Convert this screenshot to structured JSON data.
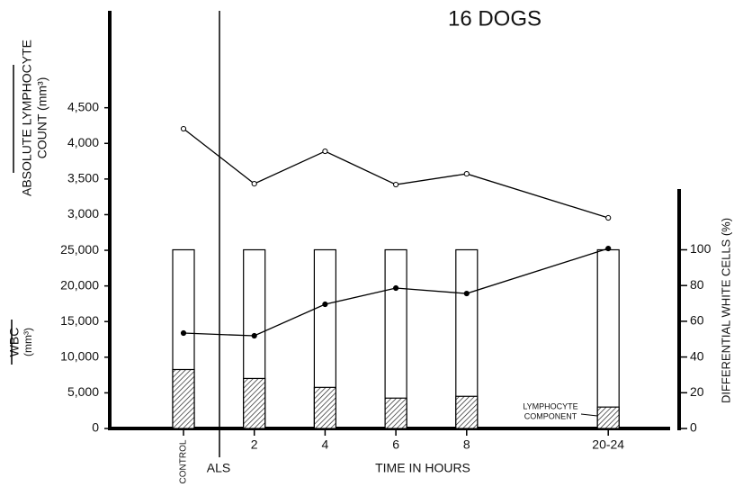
{
  "chart_data": {
    "type": "bar",
    "title": "16 DOGS",
    "x_label": "TIME IN HOURS",
    "annotation": "ALS",
    "component_label": [
      "LYMPHOCYTE",
      "COMPONENT"
    ],
    "lymph_axis_label": [
      "ABSOLUTE LYMPHOCYTE",
      "COUNT   (mm³)"
    ],
    "wbc_axis_label": [
      "WBC",
      "(mm³)"
    ],
    "y2_label": "DIFFERENTIAL WHITE CELLS (%)",
    "categories": [
      "CONTROL",
      "2",
      "4",
      "6",
      "8",
      "20-24"
    ],
    "ylim": [
      0,
      58600
    ],
    "yticks": [
      0,
      {
        "value": 5000,
        "label": "5,000"
      },
      {
        "value": 10000,
        "label": "10,000"
      },
      {
        "value": 15000,
        "label": "15,000"
      },
      {
        "value": 20000,
        "label": "20,000"
      },
      {
        "value": 25000,
        "label": "25,000"
      }
    ],
    "lymph_lim": [
      0,
      5860
    ],
    "lymph_ticks": [
      {
        "value": 3000,
        "label": "3,000"
      },
      {
        "value": 3500,
        "label": "3,500"
      },
      {
        "value": 4000,
        "label": "4,000"
      },
      {
        "value": 4500,
        "label": "4,500"
      }
    ],
    "y2lim": [
      0,
      134
    ],
    "y2ticks": [
      0,
      20,
      40,
      60,
      80,
      100
    ],
    "series": [
      {
        "axis": "y2",
        "values": [
          100,
          100,
          100,
          100,
          100,
          100
        ],
        "color": "#ffffff",
        "hatch": false
      },
      {
        "axis": "y2",
        "values": [
          33,
          28,
          23,
          17,
          18,
          12
        ],
        "color": "#000000",
        "hatch": true
      },
      {
        "axis": "lymph",
        "values": [
          4205,
          3434,
          3889,
          3422,
          3573,
          2955
        ],
        "color": "#000000",
        "filled": false
      },
      {
        "axis": "y",
        "values": [
          13384,
          13005,
          17424,
          19697,
          18939,
          25253
        ],
        "color": "#000000",
        "filled": true
      }
    ]
  }
}
